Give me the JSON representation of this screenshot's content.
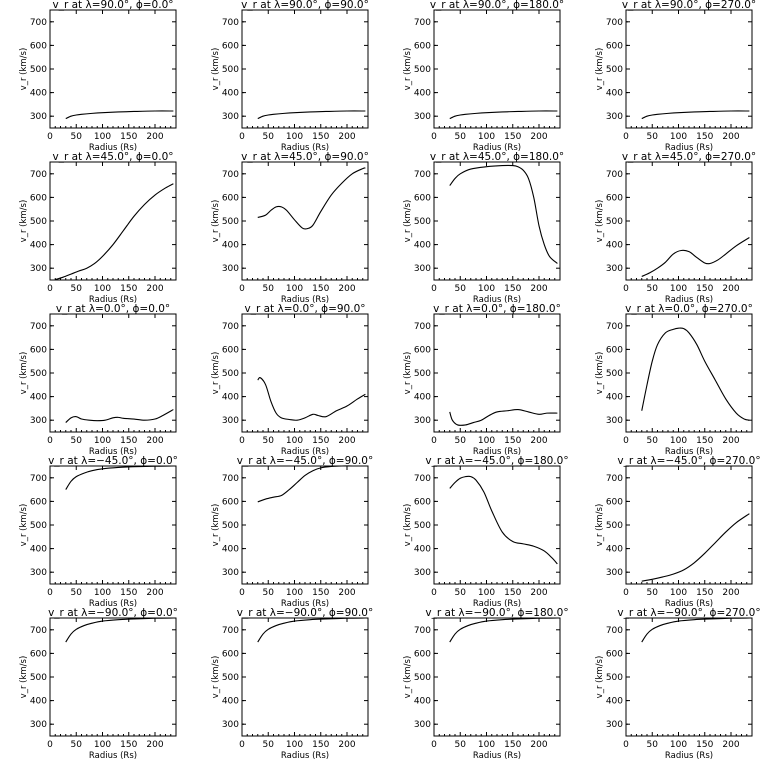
{
  "chart_data": [
    {
      "type": "line",
      "title": "v_r at λ=90.0°, ϕ=0.0°",
      "xlabel": "Radius (Rs)",
      "ylabel": "v_r (km/s)",
      "xlim": [
        0,
        240
      ],
      "ylim": [
        250,
        750
      ],
      "xticks": [
        0,
        50,
        100,
        150,
        200
      ],
      "yticks": [
        300,
        400,
        500,
        600,
        700
      ],
      "x": [
        30,
        40,
        50,
        60,
        80,
        100,
        130,
        160,
        200,
        235
      ],
      "y": [
        290,
        300,
        305,
        308,
        312,
        315,
        318,
        320,
        322,
        322
      ]
    },
    {
      "type": "line",
      "title": "v_r at λ=90.0°, ϕ=90.0°",
      "xlabel": "Radius (Rs)",
      "ylabel": "v_r (km/s)",
      "xlim": [
        0,
        240
      ],
      "ylim": [
        250,
        750
      ],
      "xticks": [
        0,
        50,
        100,
        150,
        200
      ],
      "yticks": [
        300,
        400,
        500,
        600,
        700
      ],
      "x": [
        30,
        40,
        50,
        60,
        80,
        100,
        130,
        160,
        200,
        235
      ],
      "y": [
        290,
        300,
        305,
        308,
        312,
        315,
        318,
        320,
        322,
        322
      ]
    },
    {
      "type": "line",
      "title": "v_r at λ=90.0°, ϕ=180.0°",
      "xlabel": "Radius (Rs)",
      "ylabel": "v_r (km/s)",
      "xlim": [
        0,
        240
      ],
      "ylim": [
        250,
        750
      ],
      "xticks": [
        0,
        50,
        100,
        150,
        200
      ],
      "yticks": [
        300,
        400,
        500,
        600,
        700
      ],
      "x": [
        30,
        40,
        50,
        60,
        80,
        100,
        130,
        160,
        200,
        235
      ],
      "y": [
        290,
        300,
        305,
        308,
        312,
        315,
        318,
        320,
        322,
        322
      ]
    },
    {
      "type": "line",
      "title": "v_r at λ=90.0°, ϕ=270.0°",
      "xlabel": "Radius (Rs)",
      "ylabel": "v_r (km/s)",
      "xlim": [
        0,
        240
      ],
      "ylim": [
        250,
        750
      ],
      "xticks": [
        0,
        50,
        100,
        150,
        200
      ],
      "yticks": [
        300,
        400,
        500,
        600,
        700
      ],
      "x": [
        30,
        40,
        50,
        60,
        80,
        100,
        130,
        160,
        200,
        235
      ],
      "y": [
        290,
        300,
        305,
        308,
        312,
        315,
        318,
        320,
        322,
        322
      ]
    },
    {
      "type": "line",
      "title": "v_r at λ=45.0°, ϕ=0.0°",
      "xlabel": "Radius (Rs)",
      "ylabel": "v_r (km/s)",
      "xlim": [
        0,
        240
      ],
      "ylim": [
        250,
        750
      ],
      "xticks": [
        0,
        50,
        100,
        150,
        200
      ],
      "yticks": [
        300,
        400,
        500,
        600,
        700
      ],
      "x": [
        10,
        25,
        40,
        55,
        70,
        85,
        100,
        120,
        140,
        160,
        180,
        200,
        220,
        235
      ],
      "y": [
        252,
        262,
        275,
        288,
        300,
        320,
        350,
        400,
        460,
        520,
        570,
        610,
        640,
        658
      ]
    },
    {
      "type": "line",
      "title": "v_r at λ=45.0°, ϕ=90.0°",
      "xlabel": "Radius (Rs)",
      "ylabel": "v_r (km/s)",
      "xlim": [
        0,
        240
      ],
      "ylim": [
        250,
        750
      ],
      "xticks": [
        0,
        50,
        100,
        150,
        200
      ],
      "yticks": [
        300,
        400,
        500,
        600,
        700
      ],
      "x": [
        30,
        45,
        55,
        65,
        75,
        85,
        100,
        115,
        125,
        135,
        150,
        170,
        190,
        210,
        230,
        235
      ],
      "y": [
        515,
        525,
        545,
        560,
        560,
        545,
        505,
        470,
        468,
        482,
        540,
        610,
        660,
        700,
        722,
        725
      ]
    },
    {
      "type": "line",
      "title": "v_r at λ=45.0°, ϕ=180.0°",
      "xlabel": "Radius (Rs)",
      "ylabel": "v_r (km/s)",
      "xlim": [
        0,
        240
      ],
      "ylim": [
        250,
        750
      ],
      "xticks": [
        0,
        50,
        100,
        150,
        200
      ],
      "yticks": [
        300,
        400,
        500,
        600,
        700
      ],
      "x": [
        30,
        40,
        50,
        70,
        100,
        130,
        150,
        160,
        170,
        180,
        190,
        200,
        210,
        220,
        235
      ],
      "y": [
        650,
        680,
        700,
        720,
        730,
        735,
        735,
        730,
        715,
        680,
        600,
        480,
        400,
        350,
        320
      ]
    },
    {
      "type": "line",
      "title": "v_r at λ=45.0°, ϕ=270.0°",
      "xlabel": "Radius (Rs)",
      "ylabel": "v_r (km/s)",
      "xlim": [
        0,
        240
      ],
      "ylim": [
        250,
        750
      ],
      "xticks": [
        0,
        50,
        100,
        150,
        200
      ],
      "yticks": [
        300,
        400,
        500,
        600,
        700
      ],
      "x": [
        30,
        45,
        60,
        75,
        90,
        105,
        120,
        135,
        150,
        160,
        175,
        190,
        210,
        235
      ],
      "y": [
        265,
        280,
        300,
        325,
        360,
        375,
        370,
        345,
        322,
        320,
        335,
        360,
        395,
        430
      ]
    },
    {
      "type": "line",
      "title": "v_r at λ=0.0°, ϕ=0.0°",
      "xlabel": "Radius (Rs)",
      "ylabel": "v_r (km/s)",
      "xlim": [
        0,
        240
      ],
      "ylim": [
        250,
        750
      ],
      "xticks": [
        0,
        50,
        100,
        150,
        200
      ],
      "yticks": [
        300,
        400,
        500,
        600,
        700
      ],
      "x": [
        30,
        40,
        50,
        60,
        75,
        90,
        105,
        120,
        130,
        140,
        160,
        180,
        200,
        215,
        235
      ],
      "y": [
        290,
        310,
        315,
        305,
        300,
        298,
        300,
        310,
        312,
        308,
        305,
        300,
        305,
        320,
        345
      ]
    },
    {
      "type": "line",
      "title": "v_r at λ=0.0°, ϕ=90.0°",
      "xlabel": "Radius (Rs)",
      "ylabel": "v_r (km/s)",
      "xlim": [
        0,
        240
      ],
      "ylim": [
        250,
        750
      ],
      "xticks": [
        0,
        50,
        100,
        150,
        200
      ],
      "yticks": [
        300,
        400,
        500,
        600,
        700
      ],
      "x": [
        30,
        35,
        45,
        55,
        65,
        75,
        90,
        105,
        120,
        135,
        145,
        160,
        180,
        200,
        220,
        235
      ],
      "y": [
        470,
        480,
        450,
        380,
        330,
        310,
        303,
        300,
        310,
        325,
        320,
        315,
        340,
        360,
        390,
        410
      ]
    },
    {
      "type": "line",
      "title": "v_r at λ=0.0°, ϕ=180.0°",
      "xlabel": "Radius (Rs)",
      "ylabel": "v_r (km/s)",
      "xlim": [
        0,
        240
      ],
      "ylim": [
        250,
        750
      ],
      "xticks": [
        0,
        50,
        100,
        150,
        200
      ],
      "yticks": [
        300,
        400,
        500,
        600,
        700
      ],
      "x": [
        30,
        35,
        45,
        60,
        75,
        90,
        105,
        120,
        140,
        160,
        180,
        200,
        215,
        235
      ],
      "y": [
        335,
        300,
        280,
        280,
        290,
        300,
        320,
        335,
        340,
        345,
        335,
        325,
        330,
        330
      ]
    },
    {
      "type": "line",
      "title": "v_r at λ=0.0°, ϕ=270.0°",
      "xlabel": "Radius (Rs)",
      "ylabel": "v_r (km/s)",
      "xlim": [
        0,
        240
      ],
      "ylim": [
        250,
        750
      ],
      "xticks": [
        0,
        50,
        100,
        150,
        200
      ],
      "yticks": [
        300,
        400,
        500,
        600,
        700
      ],
      "x": [
        30,
        40,
        50,
        60,
        75,
        90,
        100,
        110,
        120,
        135,
        150,
        170,
        190,
        210,
        225,
        235
      ],
      "y": [
        340,
        450,
        550,
        620,
        670,
        685,
        690,
        688,
        670,
        620,
        550,
        470,
        390,
        330,
        305,
        300
      ]
    },
    {
      "type": "line",
      "title": "v_r at λ=−45.0°, ϕ=0.0°",
      "xlabel": "Radius (Rs)",
      "ylabel": "v_r (km/s)",
      "xlim": [
        0,
        240
      ],
      "ylim": [
        250,
        750
      ],
      "xticks": [
        0,
        50,
        100,
        150,
        200
      ],
      "yticks": [
        300,
        400,
        500,
        600,
        700
      ],
      "x": [
        30,
        40,
        50,
        65,
        80,
        100,
        130,
        160,
        200,
        235
      ],
      "y": [
        650,
        685,
        705,
        720,
        730,
        738,
        744,
        747,
        749,
        750
      ]
    },
    {
      "type": "line",
      "title": "v_r at λ=−45.0°, ϕ=90.0°",
      "xlabel": "Radius (Rs)",
      "ylabel": "v_r (km/s)",
      "xlim": [
        0,
        240
      ],
      "ylim": [
        250,
        750
      ],
      "xticks": [
        0,
        50,
        100,
        150,
        200
      ],
      "yticks": [
        300,
        400,
        500,
        600,
        700
      ],
      "x": [
        30,
        45,
        60,
        75,
        90,
        105,
        120,
        135,
        150,
        170,
        190,
        210,
        235
      ],
      "y": [
        598,
        610,
        618,
        625,
        650,
        680,
        710,
        730,
        742,
        748,
        750,
        750,
        750
      ]
    },
    {
      "type": "line",
      "title": "v_r at λ=−45.0°, ϕ=180.0°",
      "xlabel": "Radius (Rs)",
      "ylabel": "v_r (km/s)",
      "xlim": [
        0,
        240
      ],
      "ylim": [
        250,
        750
      ],
      "xticks": [
        0,
        50,
        100,
        150,
        200
      ],
      "yticks": [
        300,
        400,
        500,
        600,
        700
      ],
      "x": [
        30,
        40,
        50,
        60,
        70,
        80,
        95,
        110,
        130,
        150,
        170,
        190,
        210,
        225,
        235
      ],
      "y": [
        655,
        680,
        698,
        705,
        705,
        690,
        640,
        560,
        470,
        430,
        420,
        410,
        390,
        360,
        335
      ]
    },
    {
      "type": "line",
      "title": "v_r at λ=−45.0°, ϕ=270.0°",
      "xlabel": "Radius (Rs)",
      "ylabel": "v_r (km/s)",
      "xlim": [
        0,
        240
      ],
      "ylim": [
        250,
        750
      ],
      "xticks": [
        0,
        50,
        100,
        150,
        200
      ],
      "yticks": [
        300,
        400,
        500,
        600,
        700
      ],
      "x": [
        30,
        50,
        70,
        90,
        110,
        130,
        150,
        170,
        190,
        210,
        235
      ],
      "y": [
        262,
        270,
        280,
        292,
        310,
        340,
        380,
        425,
        470,
        510,
        548
      ]
    },
    {
      "type": "line",
      "title": "v_r at λ=−90.0°, ϕ=0.0°",
      "xlabel": "Radius (Rs)",
      "ylabel": "v_r (km/s)",
      "xlim": [
        0,
        240
      ],
      "ylim": [
        250,
        750
      ],
      "xticks": [
        0,
        50,
        100,
        150,
        200
      ],
      "yticks": [
        300,
        400,
        500,
        600,
        700
      ],
      "x": [
        30,
        40,
        50,
        65,
        80,
        100,
        130,
        160,
        200,
        235
      ],
      "y": [
        648,
        682,
        702,
        718,
        728,
        737,
        743,
        746,
        749,
        750
      ]
    },
    {
      "type": "line",
      "title": "v_r at λ=−90.0°, ϕ=90.0°",
      "xlabel": "Radius (Rs)",
      "ylabel": "v_r (km/s)",
      "xlim": [
        0,
        240
      ],
      "ylim": [
        250,
        750
      ],
      "xticks": [
        0,
        50,
        100,
        150,
        200
      ],
      "yticks": [
        300,
        400,
        500,
        600,
        700
      ],
      "x": [
        30,
        40,
        50,
        65,
        80,
        100,
        130,
        160,
        200,
        235
      ],
      "y": [
        648,
        682,
        702,
        718,
        728,
        737,
        743,
        746,
        749,
        750
      ]
    },
    {
      "type": "line",
      "title": "v_r at λ=−90.0°, ϕ=180.0°",
      "xlabel": "Radius (Rs)",
      "ylabel": "v_r (km/s)",
      "xlim": [
        0,
        240
      ],
      "ylim": [
        250,
        750
      ],
      "xticks": [
        0,
        50,
        100,
        150,
        200
      ],
      "yticks": [
        300,
        400,
        500,
        600,
        700
      ],
      "x": [
        30,
        40,
        50,
        65,
        80,
        100,
        130,
        160,
        200,
        235
      ],
      "y": [
        648,
        682,
        702,
        718,
        728,
        737,
        743,
        746,
        749,
        750
      ]
    },
    {
      "type": "line",
      "title": "v_r at λ=−90.0°, ϕ=270.0°",
      "xlabel": "Radius (Rs)",
      "ylabel": "v_r (km/s)",
      "xlim": [
        0,
        240
      ],
      "ylim": [
        250,
        750
      ],
      "xticks": [
        0,
        50,
        100,
        150,
        200
      ],
      "yticks": [
        300,
        400,
        500,
        600,
        700
      ],
      "x": [
        30,
        40,
        50,
        65,
        80,
        100,
        130,
        160,
        200,
        235
      ],
      "y": [
        648,
        682,
        702,
        718,
        728,
        737,
        743,
        746,
        749,
        750
      ]
    }
  ]
}
